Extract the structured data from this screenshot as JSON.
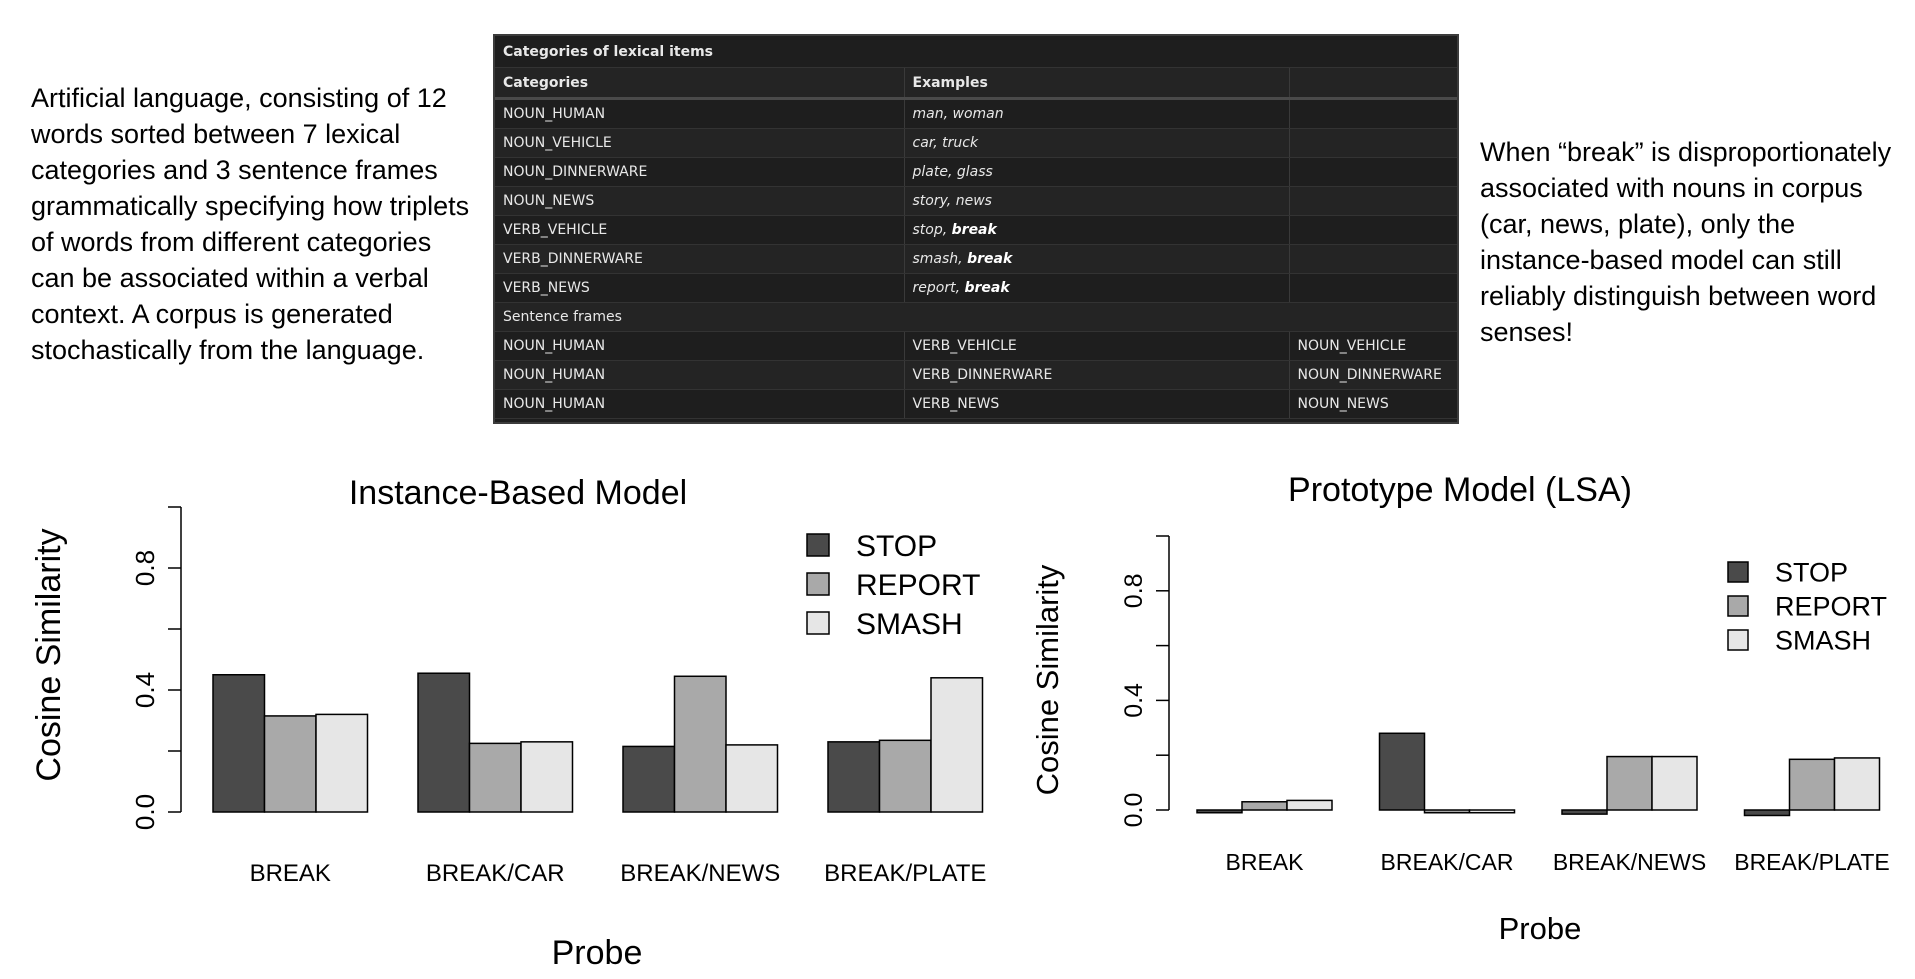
{
  "left_text": "Artificial language, consisting of 12 words sorted between 7 lexical categories and 3 sentence frames grammatically specifying how triplets of words from different categories can be associated within a verbal context. A corpus is generated stochastically from the language.",
  "right_text": "When “break” is disproportionately associated with nouns in corpus (car, news, plate), only the instance-based model can still reliably distinguish between word senses!",
  "lexicon_table": {
    "caption": "Categories of lexical items",
    "headers": [
      "Categories",
      "Examples"
    ],
    "categories": [
      {
        "name": "NOUN_HUMAN",
        "ex_plain": "man, woman",
        "ex_bold": ""
      },
      {
        "name": "NOUN_VEHICLE",
        "ex_plain": "car, truck",
        "ex_bold": ""
      },
      {
        "name": "NOUN_DINNERWARE",
        "ex_plain": "plate, glass",
        "ex_bold": ""
      },
      {
        "name": "NOUN_NEWS",
        "ex_plain": "story, news",
        "ex_bold": ""
      },
      {
        "name": "VERB_VEHICLE",
        "ex_plain": "stop, ",
        "ex_bold": "break"
      },
      {
        "name": "VERB_DINNERWARE",
        "ex_plain": "smash, ",
        "ex_bold": "break"
      },
      {
        "name": "VERB_NEWS",
        "ex_plain": "report, ",
        "ex_bold": "break"
      }
    ],
    "frames_label": "Sentence frames",
    "frames": [
      [
        "NOUN_HUMAN",
        "VERB_VEHICLE",
        "NOUN_VEHICLE"
      ],
      [
        "NOUN_HUMAN",
        "VERB_DINNERWARE",
        "NOUN_DINNERWARE"
      ],
      [
        "NOUN_HUMAN",
        "VERB_NEWS",
        "NOUN_NEWS"
      ]
    ]
  },
  "colors": {
    "STOP": "#4a4a4a",
    "REPORT": "#a9a9a9",
    "SMASH": "#e6e6e6"
  },
  "chart_data": [
    {
      "type": "bar",
      "title": "Instance-Based Model",
      "xlabel": "Probe",
      "ylabel": "Cosine Similarity",
      "categories": [
        "BREAK",
        "BREAK/CAR",
        "BREAK/NEWS",
        "BREAK/PLATE"
      ],
      "series": [
        {
          "name": "STOP",
          "values": [
            0.45,
            0.455,
            0.215,
            0.23
          ]
        },
        {
          "name": "REPORT",
          "values": [
            0.315,
            0.225,
            0.445,
            0.235
          ]
        },
        {
          "name": "SMASH",
          "values": [
            0.32,
            0.23,
            0.22,
            0.44
          ]
        }
      ],
      "ylim": [
        0,
        1
      ],
      "yticks": [
        0.0,
        0.2,
        0.4,
        0.6,
        0.8,
        1.0
      ],
      "ytick_labels": [
        "0.0",
        "",
        "0.4",
        "",
        "0.8",
        ""
      ],
      "legend_position": "top-right",
      "grid": false
    },
    {
      "type": "bar",
      "title": "Prototype Model (LSA)",
      "xlabel": "Probe",
      "ylabel": "Cosine Similarity",
      "categories": [
        "BREAK",
        "BREAK/CAR",
        "BREAK/NEWS",
        "BREAK/PLATE"
      ],
      "series": [
        {
          "name": "STOP",
          "values": [
            -0.01,
            0.28,
            -0.015,
            -0.02
          ]
        },
        {
          "name": "REPORT",
          "values": [
            0.03,
            -0.01,
            0.195,
            0.185
          ]
        },
        {
          "name": "SMASH",
          "values": [
            0.035,
            -0.01,
            0.195,
            0.19
          ]
        }
      ],
      "ylim": [
        0,
        1
      ],
      "yticks": [
        0.0,
        0.2,
        0.4,
        0.6,
        0.8,
        1.0
      ],
      "ytick_labels": [
        "0.0",
        "",
        "0.4",
        "",
        "0.8",
        ""
      ],
      "legend_position": "top-right",
      "grid": false
    }
  ]
}
